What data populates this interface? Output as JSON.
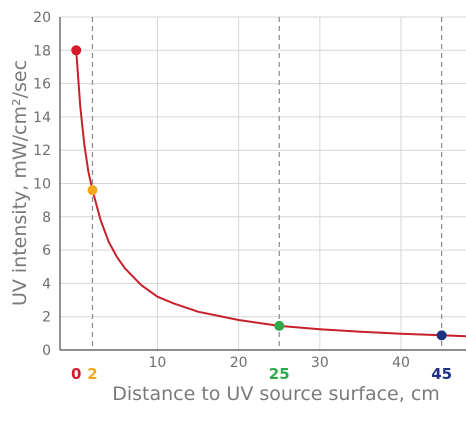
{
  "chart_data": {
    "type": "line",
    "xlabel": "Distance to UV source surface, cm",
    "ylabel": "UV intensity, mW/cm²/sec",
    "xlim": [
      -2,
      48
    ],
    "ylim": [
      0,
      20
    ],
    "x_ticks": [
      10,
      20,
      30,
      40
    ],
    "y_ticks": [
      0,
      2,
      4,
      6,
      8,
      10,
      12,
      14,
      16,
      18,
      20
    ],
    "grid": true,
    "series": [
      {
        "color": "#c8202a",
        "x": [
          0,
          0.5,
          1,
          1.5,
          2,
          3,
          4,
          5,
          6,
          8,
          10,
          12,
          15,
          20,
          25,
          30,
          35,
          40,
          45,
          48
        ],
        "y": [
          18,
          14.6,
          12.3,
          10.7,
          9.6,
          7.8,
          6.5,
          5.6,
          4.9,
          3.9,
          3.2,
          2.8,
          2.3,
          1.8,
          1.45,
          1.25,
          1.1,
          0.98,
          0.88,
          0.82
        ]
      }
    ],
    "markers": [
      {
        "x": 0,
        "y": 18,
        "label": "0",
        "color": "#d7192a"
      },
      {
        "x": 2,
        "y": 9.6,
        "label": "2",
        "color": "#f5a81c"
      },
      {
        "x": 25,
        "y": 1.45,
        "label": "25",
        "color": "#2ea84a"
      },
      {
        "x": 45,
        "y": 0.88,
        "label": "45",
        "color": "#1f3282"
      }
    ],
    "axis_color": "#4a4a4a",
    "grid_color": "#d6d6d6",
    "guide_line_color": "#8a8a8a",
    "tick_label_color": "#6e6e6e",
    "axis_title_color": "#7a7a7a"
  }
}
